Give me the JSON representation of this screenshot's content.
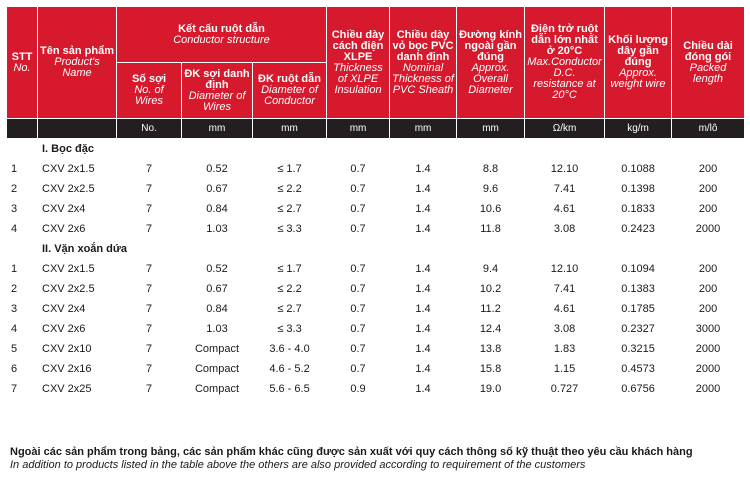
{
  "header": {
    "stt": "STT",
    "stt_en": "No.",
    "product": "Tên sản phẩm",
    "product_en": "Product's Name",
    "conductor": "Kết cấu ruột dẫn",
    "conductor_en": "Conductor structure",
    "wires": "Số sợi",
    "wires_en": "No. of Wires",
    "wire_dia": "ĐK sợi danh định",
    "wire_dia_en": "Diameter of Wires",
    "cond_dia": "ĐK ruột dẫn",
    "cond_dia_en": "Diameter of Conductor",
    "xlpe": "Chiều dày cách điện XLPE",
    "xlpe_en": "Thickness of XLPE Insulation",
    "pvc": "Chiều dày vỏ bọc PVC danh định",
    "pvc_en": "Nominal Thickness of PVC Sheath",
    "overall": "Đường kính ngoài gần đúng",
    "overall_en": "Approx. Overall Diameter",
    "resistance": "Điện trở ruột dẫn lớn nhất ở 20°C",
    "resistance_en": "Max.Conductor D.C. resistance at 20°C",
    "weight": "Khối lượng dây gần đúng",
    "weight_en": "Approx. weight wire",
    "packed": "Chiều dài đóng gói",
    "packed_en": "Packed length"
  },
  "units": [
    "No.",
    "mm",
    "mm",
    "mm",
    "mm",
    "mm",
    "Ω/km",
    "kg/m",
    "m/lô"
  ],
  "groups": [
    {
      "title": "I. Bọc đặc",
      "rows": [
        [
          "1",
          "CXV 2x1.5",
          "7",
          "0.52",
          "≤ 1.7",
          "0.7",
          "1.4",
          "8.8",
          "12.10",
          "0.1088",
          "200"
        ],
        [
          "2",
          "CXV 2x2.5",
          "7",
          "0.67",
          "≤ 2.2",
          "0.7",
          "1.4",
          "9.6",
          "7.41",
          "0.1398",
          "200"
        ],
        [
          "3",
          "CXV 2x4",
          "7",
          "0.84",
          "≤ 2.7",
          "0.7",
          "1.4",
          "10.6",
          "4.61",
          "0.1833",
          "200"
        ],
        [
          "4",
          "CXV 2x6",
          "7",
          "1.03",
          "≤ 3.3",
          "0.7",
          "1.4",
          "11.8",
          "3.08",
          "0.2423",
          "2000"
        ]
      ]
    },
    {
      "title": "II. Vặn xoắn dứa",
      "rows": [
        [
          "1",
          "CXV 2x1.5",
          "7",
          "0.52",
          "≤ 1.7",
          "0.7",
          "1.4",
          "9.4",
          "12.10",
          "0.1094",
          "200"
        ],
        [
          "2",
          "CXV 2x2.5",
          "7",
          "0.67",
          "≤ 2.2",
          "0.7",
          "1.4",
          "10.2",
          "7.41",
          "0.1383",
          "200"
        ],
        [
          "3",
          "CXV 2x4",
          "7",
          "0.84",
          "≤ 2.7",
          "0.7",
          "1.4",
          "11.2",
          "4.61",
          "0.1785",
          "200"
        ],
        [
          "4",
          "CXV 2x6",
          "7",
          "1.03",
          "≤ 3.3",
          "0.7",
          "1.4",
          "12.4",
          "3.08",
          "0.2327",
          "3000"
        ],
        [
          "5",
          "CXV 2x10",
          "7",
          "Compact",
          "3.6 - 4.0",
          "0.7",
          "1.4",
          "13.8",
          "1.83",
          "0.3215",
          "2000"
        ],
        [
          "6",
          "CXV 2x16",
          "7",
          "Compact",
          "4.6 - 5.2",
          "0.7",
          "1.4",
          "15.8",
          "1.15",
          "0.4573",
          "2000"
        ],
        [
          "7",
          "CXV 2x25",
          "7",
          "Compact",
          "5.6 - 6.5",
          "0.9",
          "1.4",
          "19.0",
          "0.727",
          "0.6756",
          "2000"
        ]
      ]
    }
  ],
  "note": {
    "vi": "Ngoài các sản phẩm trong bảng, các sản phẩm khác cũng được sản xuất với quy cách thông số kỹ thuật  theo yêu cầu khách hàng",
    "en": "In addition to products listed in the table above the others are also provided according to requirement of the customers"
  },
  "colors": {
    "header_red": "#d7192d",
    "unit_bar": "#231f20"
  }
}
